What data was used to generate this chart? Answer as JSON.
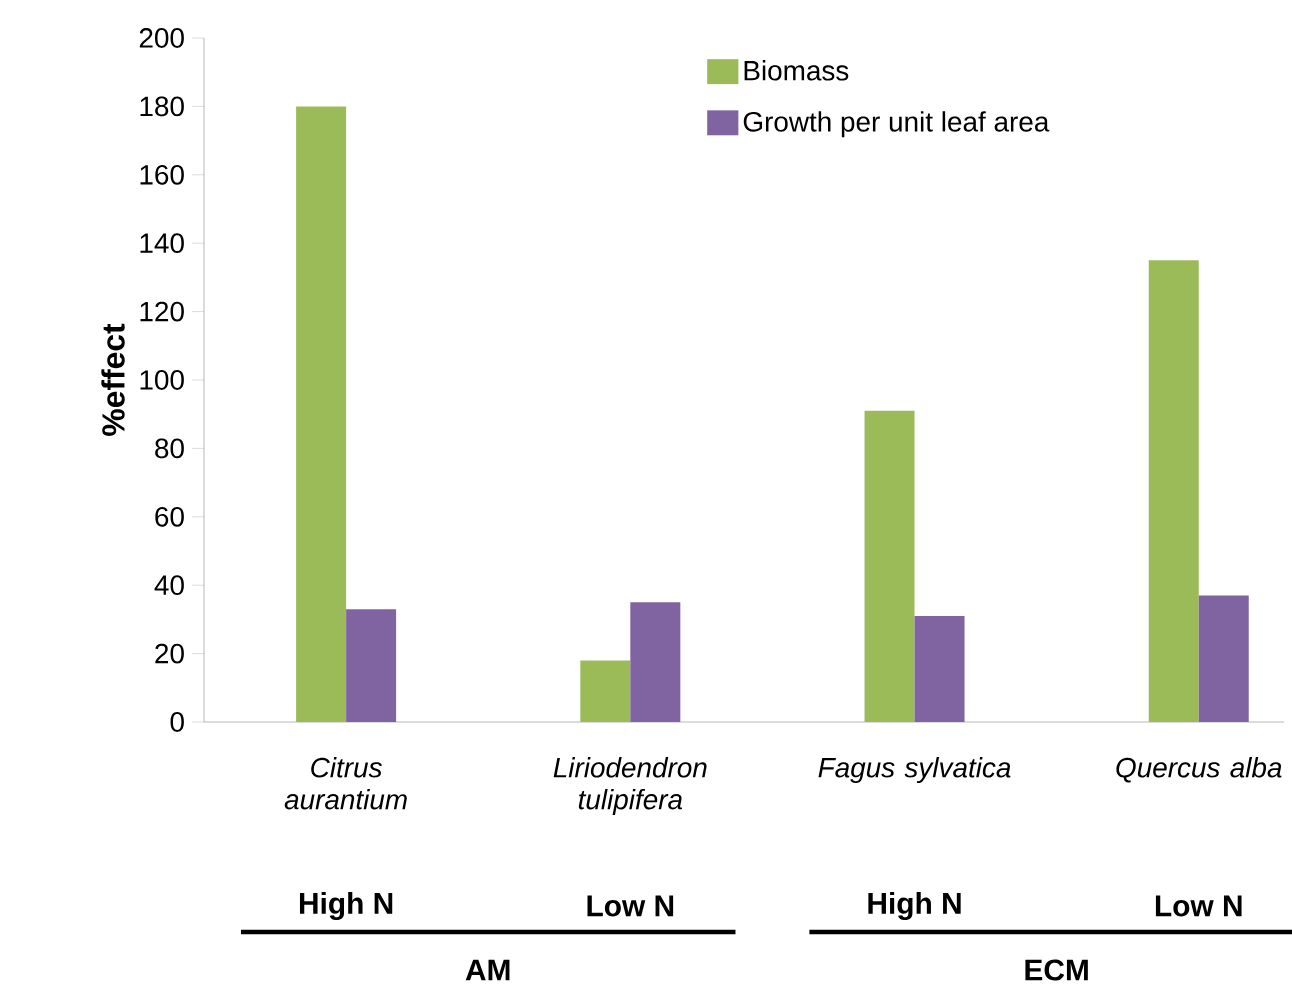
{
  "chart_data": {
    "type": "bar",
    "ylabel": "%effect",
    "categories": [
      "Citrus aurantium",
      "Liriodendron tulipifera",
      "Fagus sylvatica",
      "Quercus alba"
    ],
    "series": [
      {
        "name": "Biomass",
        "color": "#9bbb59",
        "values": [
          180,
          18,
          91,
          135
        ]
      },
      {
        "name": "Growth per unit leaf area",
        "color": "#8064a2",
        "values": [
          33,
          35,
          31,
          37
        ]
      }
    ],
    "ylim": [
      0,
      200
    ],
    "yticks": [
      0,
      20,
      40,
      60,
      80,
      100,
      120,
      140,
      160,
      180,
      200
    ],
    "grid": false,
    "legend": "top right",
    "annotations": [
      "High N",
      "Low N",
      "High N",
      "Low N",
      "AM",
      "ECM"
    ]
  }
}
